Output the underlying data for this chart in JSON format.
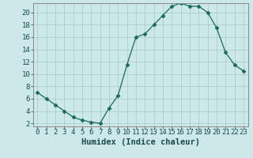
{
  "x": [
    0,
    1,
    2,
    3,
    4,
    5,
    6,
    7,
    8,
    9,
    10,
    11,
    12,
    13,
    14,
    15,
    16,
    17,
    18,
    19,
    20,
    21,
    22,
    23
  ],
  "y": [
    7,
    6,
    5,
    4,
    3,
    2.5,
    2.2,
    2,
    4.5,
    6.5,
    11.5,
    16,
    16.5,
    18,
    19.5,
    21,
    21.5,
    21,
    21,
    20,
    17.5,
    13.5,
    11.5,
    10.5
  ],
  "line_color": "#1a6b5a",
  "marker": "D",
  "marker_size": 2.5,
  "bg_color": "#cce8e8",
  "grid_color": "#aac8c8",
  "xlabel": "Humidex (Indice chaleur)",
  "xlim": [
    -0.5,
    23.5
  ],
  "ylim": [
    1.5,
    21.5
  ],
  "yticks": [
    2,
    4,
    6,
    8,
    10,
    12,
    14,
    16,
    18,
    20
  ],
  "xticks": [
    0,
    1,
    2,
    3,
    4,
    5,
    6,
    7,
    8,
    9,
    10,
    11,
    12,
    13,
    14,
    15,
    16,
    17,
    18,
    19,
    20,
    21,
    22,
    23
  ],
  "label_fontsize": 7.5,
  "tick_fontsize": 6.5,
  "spine_color": "#888888"
}
